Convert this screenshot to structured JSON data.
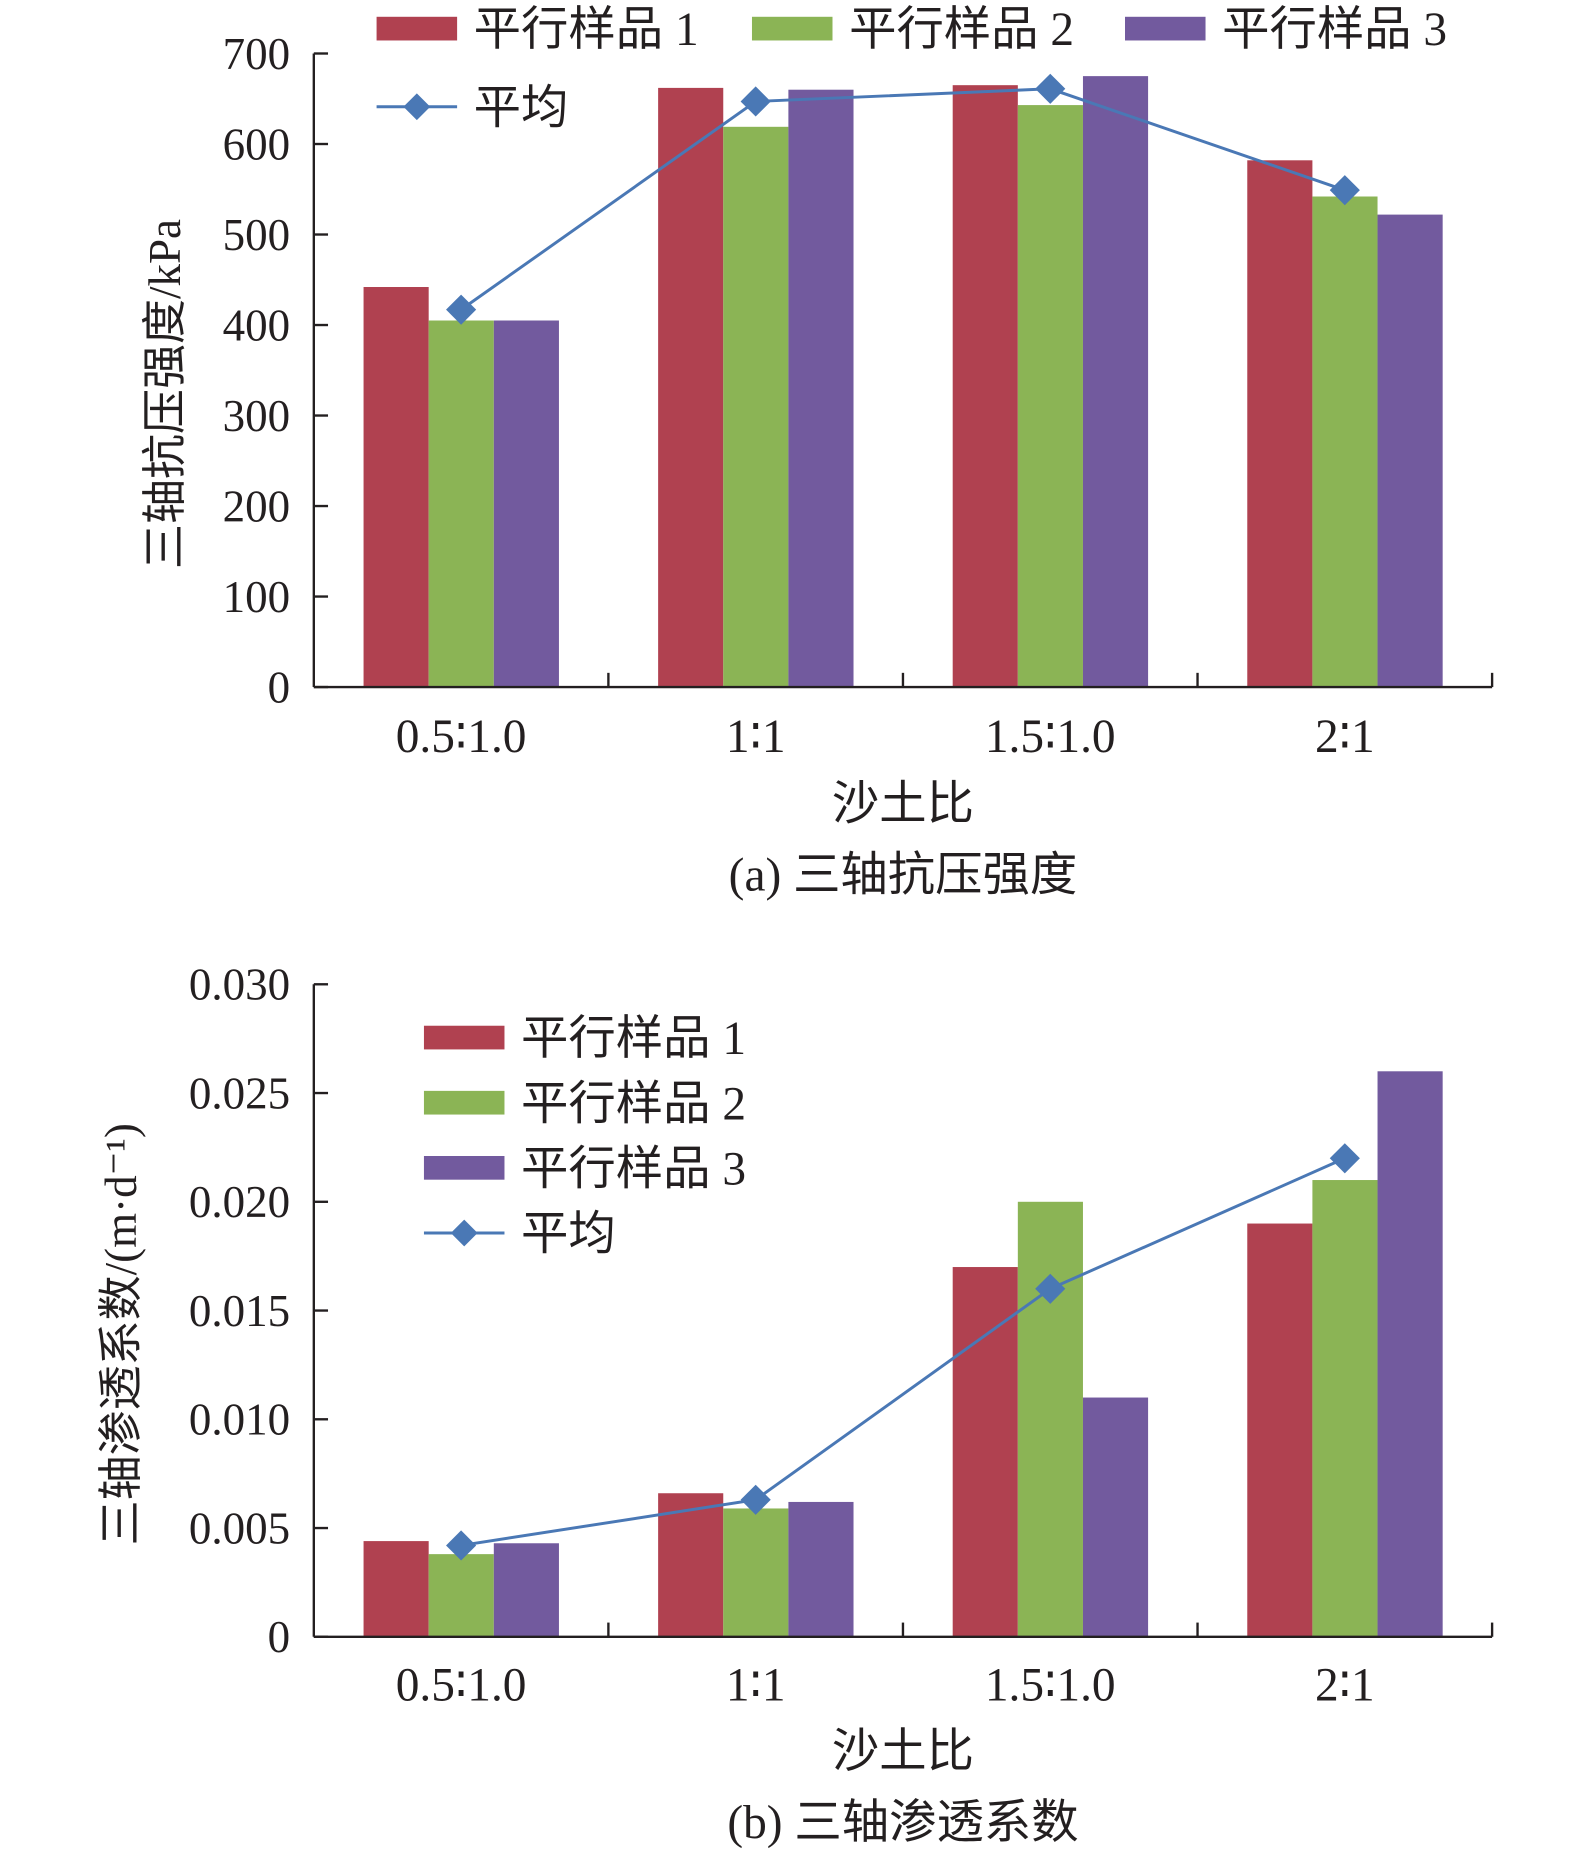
{
  "colors": {
    "s1": "#b04150",
    "s2": "#8bb455",
    "s3": "#725a9e",
    "avg": "#4a78b5",
    "axis": "#231f20"
  },
  "chart_data": [
    {
      "type": "bar",
      "title": "(a) 三轴抗压强度",
      "xlabel": "沙土比",
      "ylabel": "三轴抗压强度/kPa",
      "categories": [
        "0.5∶1.0",
        "1∶1",
        "1.5∶1.0",
        "2∶1"
      ],
      "ylim": [
        0,
        700
      ],
      "yticks": [
        "0",
        "100",
        "200",
        "300",
        "400",
        "500",
        "600",
        "700"
      ],
      "ytick_values": [
        0,
        100,
        200,
        300,
        400,
        500,
        600,
        700
      ],
      "legend_placement": "top",
      "series": [
        {
          "name": "平行样品 1",
          "kind": "bar",
          "values": [
            442,
            662,
            665,
            582
          ]
        },
        {
          "name": "平行样品 2",
          "kind": "bar",
          "values": [
            405,
            619,
            643,
            542
          ]
        },
        {
          "name": "平行样品 3",
          "kind": "bar",
          "values": [
            405,
            660,
            675,
            522
          ]
        },
        {
          "name": "平均",
          "kind": "line",
          "values": [
            417,
            647,
            661,
            549
          ]
        }
      ]
    },
    {
      "type": "bar",
      "title": "(b) 三轴渗透系数",
      "xlabel": "沙土比",
      "ylabel": "三轴渗透系数/(m·d⁻¹)",
      "categories": [
        "0.5∶1.0",
        "1∶1",
        "1.5∶1.0",
        "2∶1"
      ],
      "ylim": [
        0,
        0.03
      ],
      "yticks": [
        "0",
        "0.005",
        "0.010",
        "0.015",
        "0.020",
        "0.025",
        "0.030"
      ],
      "ytick_values": [
        0,
        0.005,
        0.01,
        0.015,
        0.02,
        0.025,
        0.03
      ],
      "legend_placement": "top-left",
      "series": [
        {
          "name": "平行样品 1",
          "kind": "bar",
          "values": [
            0.0044,
            0.0066,
            0.017,
            0.019
          ]
        },
        {
          "name": "平行样品 2",
          "kind": "bar",
          "values": [
            0.0038,
            0.0059,
            0.02,
            0.021
          ]
        },
        {
          "name": "平行样品 3",
          "kind": "bar",
          "values": [
            0.0043,
            0.0062,
            0.011,
            0.026
          ]
        },
        {
          "name": "平均",
          "kind": "line",
          "values": [
            0.0042,
            0.0063,
            0.016,
            0.022
          ]
        }
      ]
    }
  ]
}
